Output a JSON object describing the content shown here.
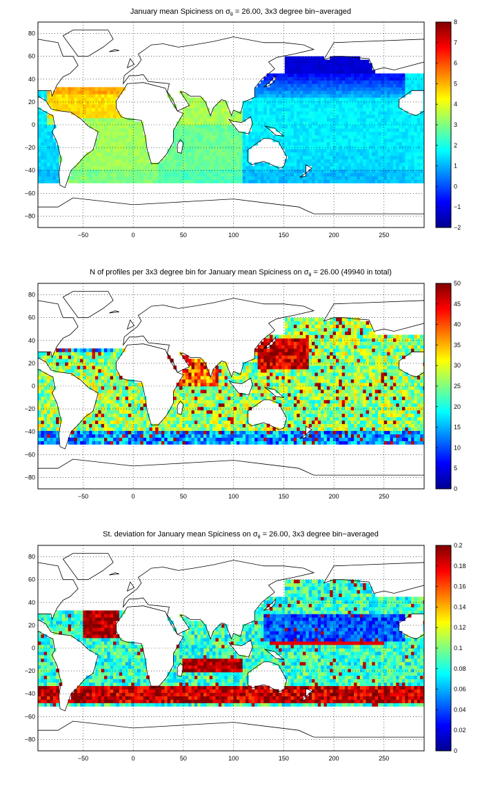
{
  "colormap": [
    "#00008f",
    "#0000ff",
    "#0080ff",
    "#00ffff",
    "#80ff80",
    "#ffff00",
    "#ff8000",
    "#ff0000",
    "#800000"
  ],
  "panels": [
    {
      "title_pre": "January mean Spiciness on ",
      "sigma": "σ",
      "theta": "θ",
      "title_post": " = 26.00, 3x3 degree bin−averaged",
      "xticks": [
        "−50",
        "0",
        "50",
        "100",
        "150",
        "200",
        "250"
      ],
      "yticks": [
        "80",
        "60",
        "40",
        "20",
        "0",
        "−20",
        "−40",
        "−60",
        "−80"
      ],
      "cticks": [
        "8",
        "7",
        "6",
        "5",
        "4",
        "3",
        "2",
        "1",
        "0",
        "−1",
        "−2"
      ]
    },
    {
      "title_pre": "N of profiles per 3x3 degree bin for January mean Spiciness on ",
      "sigma": "σ",
      "theta": "θ",
      "title_post": " = 26.00 (49940 in total)",
      "xticks": [
        "−50",
        "0",
        "50",
        "100",
        "150",
        "200",
        "250"
      ],
      "yticks": [
        "80",
        "60",
        "40",
        "20",
        "0",
        "−20",
        "−40",
        "−60",
        "−80"
      ],
      "cticks": [
        "50",
        "45",
        "40",
        "35",
        "30",
        "25",
        "20",
        "15",
        "10",
        "5",
        "0"
      ]
    },
    {
      "title_pre": "St. deviation for January mean Spiciness on ",
      "sigma": "σ",
      "theta": "θ",
      "title_post": " = 26.00, 3x3 degree bin−averaged",
      "xticks": [
        "−50",
        "0",
        "50",
        "100",
        "150",
        "200",
        "250"
      ],
      "yticks": [
        "80",
        "60",
        "40",
        "20",
        "0",
        "−20",
        "−40",
        "−60",
        "−80"
      ],
      "cticks": [
        "0.2",
        "0.18",
        "0.16",
        "0.14",
        "0.12",
        "0.1",
        "0.08",
        "0.06",
        "0.04",
        "0.02",
        "0"
      ]
    }
  ],
  "chart_data": [
    {
      "type": "heatmap",
      "title": "January mean Spiciness on σθ = 26.00, 3x3 degree bin−averaged",
      "xlim": [
        -95,
        290
      ],
      "ylim": [
        -90,
        90
      ],
      "color_range": [
        -2,
        8
      ],
      "grid": true,
      "description_values": {
        "north_atlantic_subtropics": 5,
        "south_atlantic": 3.5,
        "indian_ocean": 3,
        "south_pacific": 1.5,
        "north_pacific_subpolar": -1
      }
    },
    {
      "type": "heatmap",
      "title": "N of profiles per 3x3 degree bin for January mean Spiciness on σθ = 26.00 (49940 in total)",
      "xlim": [
        -95,
        290
      ],
      "ylim": [
        -90,
        90
      ],
      "color_range": [
        0,
        50
      ],
      "total_profiles": 49940,
      "grid": true
    },
    {
      "type": "heatmap",
      "title": "St. deviation for January mean Spiciness on σθ = 26.00, 3x3 degree bin−averaged",
      "xlim": [
        -95,
        290
      ],
      "ylim": [
        -90,
        90
      ],
      "color_range": [
        0,
        0.2
      ],
      "grid": true
    }
  ]
}
